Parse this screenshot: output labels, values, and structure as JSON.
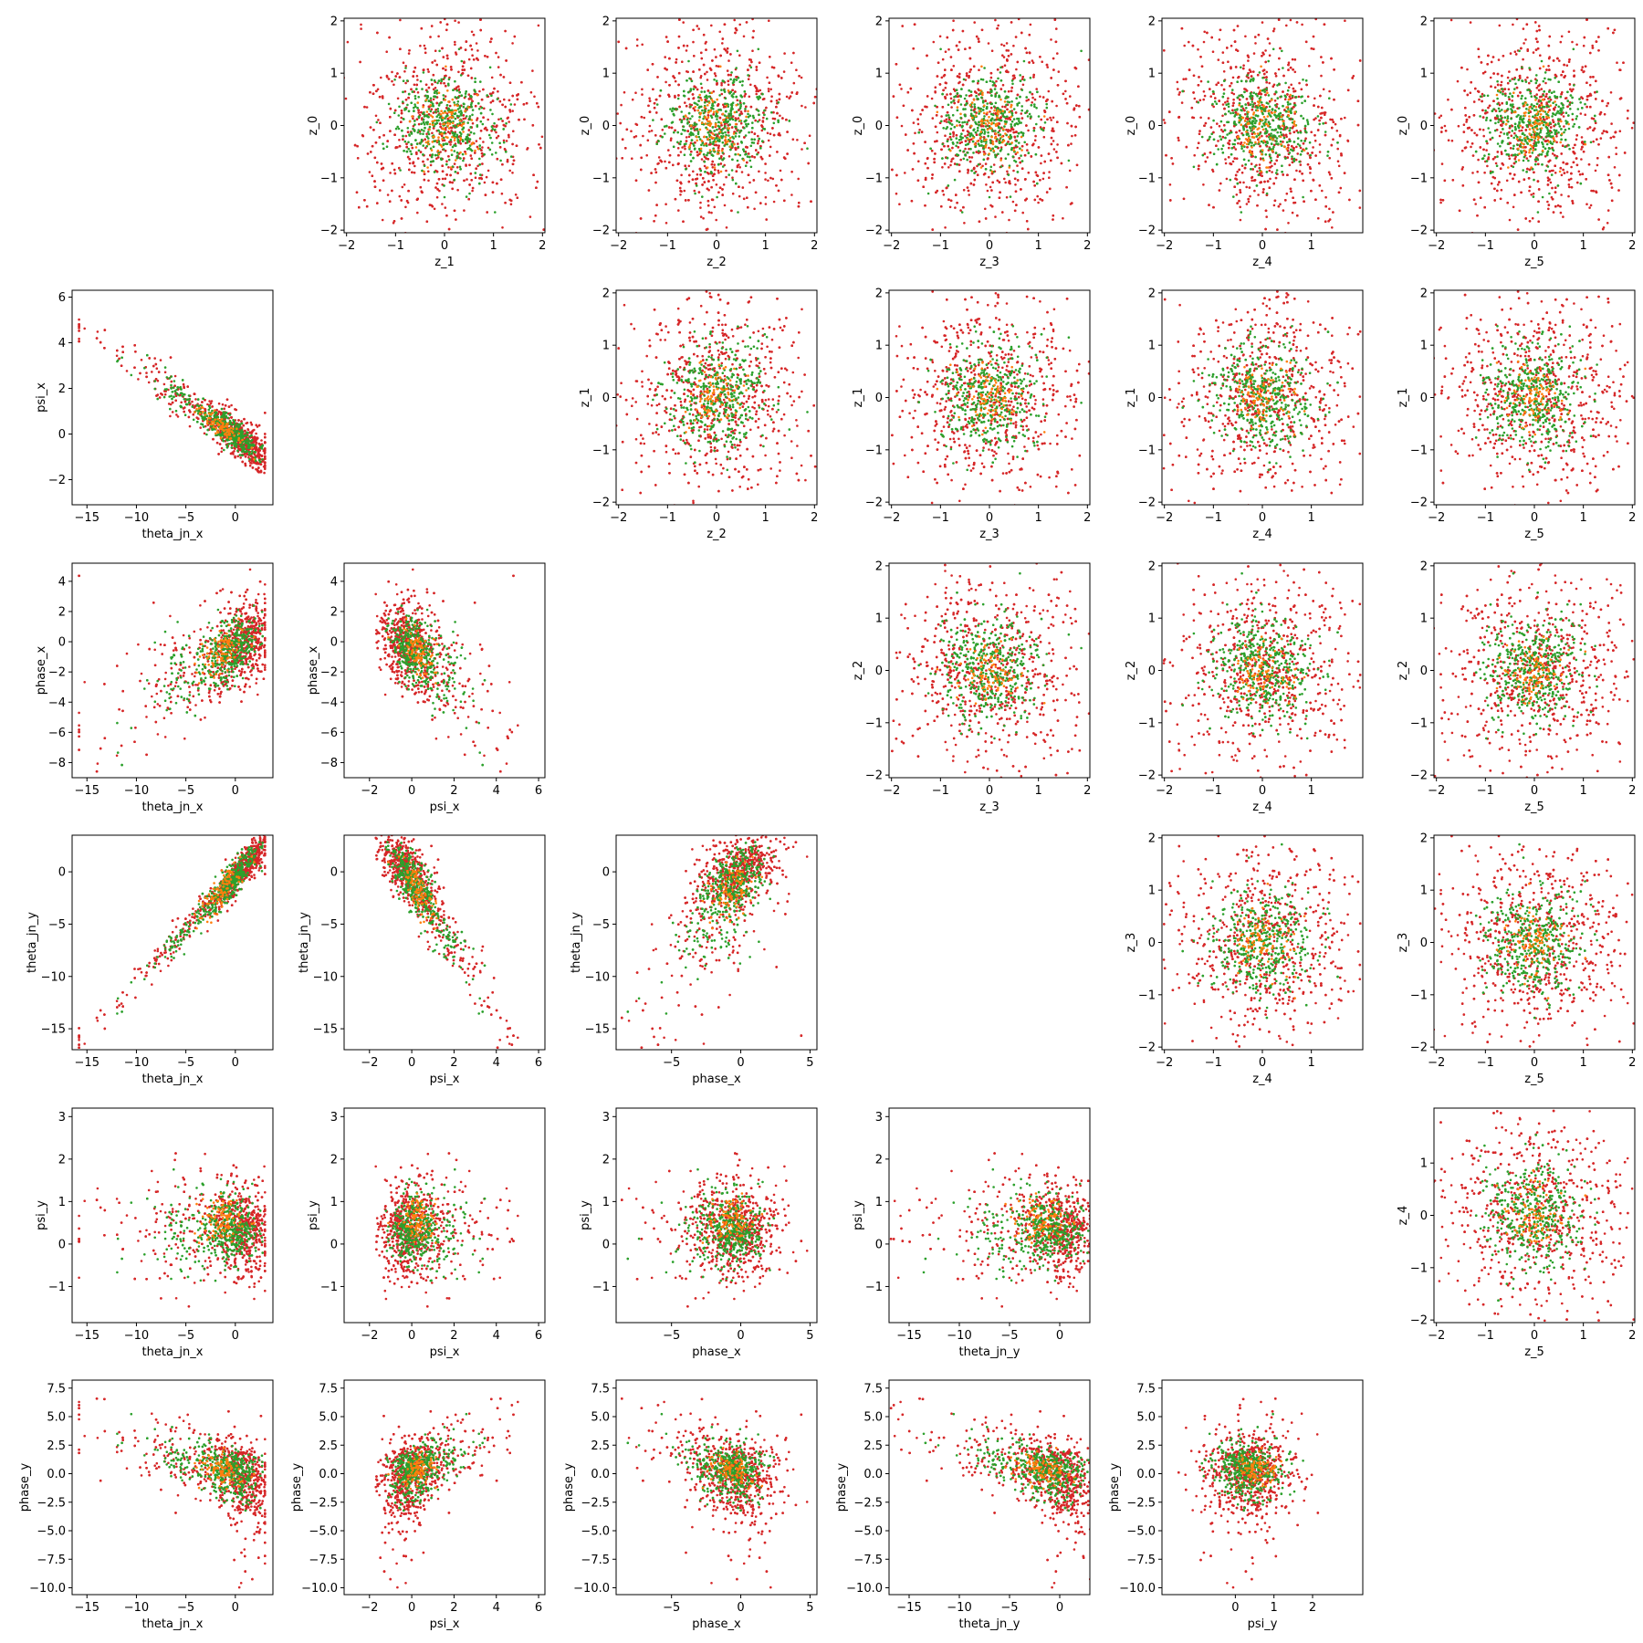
{
  "figure": {
    "background": "#ffffff",
    "colors": {
      "red": "#d62728",
      "green": "#2ca02c",
      "orange": "#ff7f0e"
    },
    "point_counts": {
      "red": 1200,
      "green": 520,
      "orange": 90
    },
    "grid": false,
    "legend": "none"
  },
  "chart_data": [
    {
      "type": "scatter",
      "row": 0,
      "col": 1,
      "xlabel": "z_1",
      "ylabel": "z_0",
      "xlim": [
        -2.05,
        2.05
      ],
      "ylim": [
        -2.05,
        2.05
      ],
      "xticks": [
        -2,
        -1,
        0,
        1,
        2
      ],
      "yticks": [
        -2,
        -1,
        0,
        1,
        2
      ],
      "pattern": "gaussian"
    },
    {
      "type": "scatter",
      "row": 0,
      "col": 2,
      "xlabel": "z_2",
      "ylabel": "z_0",
      "xlim": [
        -2.05,
        2.05
      ],
      "ylim": [
        -2.05,
        2.05
      ],
      "xticks": [
        -2,
        -1,
        0,
        1,
        2
      ],
      "yticks": [
        -2,
        -1,
        0,
        1,
        2
      ],
      "pattern": "gaussian"
    },
    {
      "type": "scatter",
      "row": 0,
      "col": 3,
      "xlabel": "z_3",
      "ylabel": "z_0",
      "xlim": [
        -2.05,
        2.05
      ],
      "ylim": [
        -2.05,
        2.05
      ],
      "xticks": [
        -2,
        -1,
        0,
        1,
        2
      ],
      "yticks": [
        -2,
        -1,
        0,
        1,
        2
      ],
      "pattern": "gaussian"
    },
    {
      "type": "scatter",
      "row": 0,
      "col": 4,
      "xlabel": "z_4",
      "ylabel": "z_0",
      "xlim": [
        -2.05,
        2.05
      ],
      "ylim": [
        -2.05,
        2.05
      ],
      "xticks": [
        -2,
        -1,
        0,
        1
      ],
      "yticks": [
        -2,
        -1,
        0,
        1,
        2
      ],
      "pattern": "gaussian"
    },
    {
      "type": "scatter",
      "row": 0,
      "col": 5,
      "xlabel": "z_5",
      "ylabel": "z_0",
      "xlim": [
        -2.05,
        2.05
      ],
      "ylim": [
        -2.05,
        2.05
      ],
      "xticks": [
        -2,
        -1,
        0,
        1,
        2
      ],
      "yticks": [
        -2,
        -1,
        0,
        1,
        2
      ],
      "pattern": "gaussian"
    },
    {
      "type": "scatter",
      "row": 1,
      "col": 0,
      "xlabel": "theta_jn_x",
      "ylabel": "psi_x",
      "xlim": [
        -16.5,
        3.8
      ],
      "ylim": [
        -3.1,
        6.3
      ],
      "xticks": [
        -15,
        -10,
        -5,
        0
      ],
      "yticks": [
        -2,
        0,
        2,
        4,
        6
      ],
      "pattern": "theta_psi"
    },
    {
      "type": "scatter",
      "row": 1,
      "col": 2,
      "xlabel": "z_2",
      "ylabel": "z_1",
      "xlim": [
        -2.05,
        2.05
      ],
      "ylim": [
        -2.05,
        2.05
      ],
      "xticks": [
        -2,
        -1,
        0,
        1,
        2
      ],
      "yticks": [
        -2,
        -1,
        0,
        1,
        2
      ],
      "pattern": "gaussian"
    },
    {
      "type": "scatter",
      "row": 1,
      "col": 3,
      "xlabel": "z_3",
      "ylabel": "z_1",
      "xlim": [
        -2.05,
        2.05
      ],
      "ylim": [
        -2.05,
        2.05
      ],
      "xticks": [
        -2,
        -1,
        0,
        1,
        2
      ],
      "yticks": [
        -2,
        -1,
        0,
        1,
        2
      ],
      "pattern": "gaussian"
    },
    {
      "type": "scatter",
      "row": 1,
      "col": 4,
      "xlabel": "z_4",
      "ylabel": "z_1",
      "xlim": [
        -2.05,
        2.05
      ],
      "ylim": [
        -2.05,
        2.05
      ],
      "xticks": [
        -2,
        -1,
        0,
        1
      ],
      "yticks": [
        -2,
        -1,
        0,
        1,
        2
      ],
      "pattern": "gaussian"
    },
    {
      "type": "scatter",
      "row": 1,
      "col": 5,
      "xlabel": "z_5",
      "ylabel": "z_1",
      "xlim": [
        -2.05,
        2.05
      ],
      "ylim": [
        -2.05,
        2.05
      ],
      "xticks": [
        -2,
        -1,
        0,
        1,
        2
      ],
      "yticks": [
        -2,
        -1,
        0,
        1,
        2
      ],
      "pattern": "gaussian"
    },
    {
      "type": "scatter",
      "row": 2,
      "col": 0,
      "xlabel": "theta_jn_x",
      "ylabel": "phase_x",
      "xlim": [
        -16.5,
        3.8
      ],
      "ylim": [
        -9.0,
        5.2
      ],
      "xticks": [
        -15,
        -10,
        -5,
        0
      ],
      "yticks": [
        -8,
        -6,
        -4,
        -2,
        0,
        2,
        4
      ],
      "pattern": "theta_phase"
    },
    {
      "type": "scatter",
      "row": 2,
      "col": 1,
      "xlabel": "psi_x",
      "ylabel": "phase_x",
      "xlim": [
        -3.2,
        6.3
      ],
      "ylim": [
        -9.0,
        5.2
      ],
      "xticks": [
        -2,
        0,
        2,
        4,
        6
      ],
      "yticks": [
        -8,
        -6,
        -4,
        -2,
        0,
        2,
        4
      ],
      "pattern": "psi_phase"
    },
    {
      "type": "scatter",
      "row": 2,
      "col": 3,
      "xlabel": "z_3",
      "ylabel": "z_2",
      "xlim": [
        -2.05,
        2.05
      ],
      "ylim": [
        -2.05,
        2.05
      ],
      "xticks": [
        -2,
        -1,
        0,
        1,
        2
      ],
      "yticks": [
        -2,
        -1,
        0,
        1,
        2
      ],
      "pattern": "gaussian"
    },
    {
      "type": "scatter",
      "row": 2,
      "col": 4,
      "xlabel": "z_4",
      "ylabel": "z_2",
      "xlim": [
        -2.05,
        2.05
      ],
      "ylim": [
        -2.05,
        2.05
      ],
      "xticks": [
        -2,
        -1,
        0,
        1
      ],
      "yticks": [
        -2,
        -1,
        0,
        1,
        2
      ],
      "pattern": "gaussian"
    },
    {
      "type": "scatter",
      "row": 2,
      "col": 5,
      "xlabel": "z_5",
      "ylabel": "z_2",
      "xlim": [
        -2.05,
        2.05
      ],
      "ylim": [
        -2.05,
        2.05
      ],
      "xticks": [
        -2,
        -1,
        0,
        1,
        2
      ],
      "yticks": [
        -2,
        -1,
        0,
        1,
        2
      ],
      "pattern": "gaussian"
    },
    {
      "type": "scatter",
      "row": 3,
      "col": 0,
      "xlabel": "theta_jn_x",
      "ylabel": "theta_jn_y",
      "xlim": [
        -16.5,
        3.8
      ],
      "ylim": [
        -17.0,
        3.5
      ],
      "xticks": [
        -15,
        -10,
        -5,
        0
      ],
      "yticks": [
        -15,
        -10,
        -5,
        0
      ],
      "pattern": "theta_theta"
    },
    {
      "type": "scatter",
      "row": 3,
      "col": 1,
      "xlabel": "psi_x",
      "ylabel": "theta_jn_y",
      "xlim": [
        -3.2,
        6.3
      ],
      "ylim": [
        -17.0,
        3.5
      ],
      "xticks": [
        -2,
        0,
        2,
        4,
        6
      ],
      "yticks": [
        -15,
        -10,
        -5,
        0
      ],
      "pattern": "psi_theta"
    },
    {
      "type": "scatter",
      "row": 3,
      "col": 2,
      "xlabel": "phase_x",
      "ylabel": "theta_jn_y",
      "xlim": [
        -9.0,
        5.5
      ],
      "ylim": [
        -17.0,
        3.5
      ],
      "xticks": [
        -5,
        0,
        5
      ],
      "yticks": [
        -15,
        -10,
        -5,
        0
      ],
      "pattern": "phase_theta"
    },
    {
      "type": "scatter",
      "row": 3,
      "col": 4,
      "xlabel": "z_4",
      "ylabel": "z_3",
      "xlim": [
        -2.05,
        2.05
      ],
      "ylim": [
        -2.05,
        2.05
      ],
      "xticks": [
        -2,
        -1,
        0,
        1
      ],
      "yticks": [
        -2,
        -1,
        0,
        1,
        2
      ],
      "pattern": "gaussian"
    },
    {
      "type": "scatter",
      "row": 3,
      "col": 5,
      "xlabel": "z_5",
      "ylabel": "z_3",
      "xlim": [
        -2.05,
        2.05
      ],
      "ylim": [
        -2.05,
        2.05
      ],
      "xticks": [
        -2,
        -1,
        0,
        1,
        2
      ],
      "yticks": [
        -2,
        -1,
        0,
        1,
        2
      ],
      "pattern": "gaussian"
    },
    {
      "type": "scatter",
      "row": 4,
      "col": 0,
      "xlabel": "theta_jn_x",
      "ylabel": "psi_y",
      "xlim": [
        -16.5,
        3.8
      ],
      "ylim": [
        -1.85,
        3.2
      ],
      "xticks": [
        -15,
        -10,
        -5,
        0
      ],
      "yticks": [
        -1,
        0,
        1,
        2,
        3
      ],
      "pattern": "theta_psiy"
    },
    {
      "type": "scatter",
      "row": 4,
      "col": 1,
      "xlabel": "psi_x",
      "ylabel": "psi_y",
      "xlim": [
        -3.2,
        6.3
      ],
      "ylim": [
        -1.85,
        3.2
      ],
      "xticks": [
        -2,
        0,
        2,
        4,
        6
      ],
      "yticks": [
        -1,
        0,
        1,
        2,
        3
      ],
      "pattern": "psi_psiy"
    },
    {
      "type": "scatter",
      "row": 4,
      "col": 2,
      "xlabel": "phase_x",
      "ylabel": "psi_y",
      "xlim": [
        -9.0,
        5.5
      ],
      "ylim": [
        -1.85,
        3.2
      ],
      "xticks": [
        -5,
        0,
        5
      ],
      "yticks": [
        -1,
        0,
        1,
        2,
        3
      ],
      "pattern": "phase_psiy"
    },
    {
      "type": "scatter",
      "row": 4,
      "col": 3,
      "xlabel": "theta_jn_y",
      "ylabel": "psi_y",
      "xlim": [
        -17.0,
        3.0
      ],
      "ylim": [
        -1.85,
        3.2
      ],
      "xticks": [
        -15,
        -10,
        -5,
        0
      ],
      "yticks": [
        -1,
        0,
        1,
        2,
        3
      ],
      "pattern": "thetay_psiy"
    },
    {
      "type": "scatter",
      "row": 4,
      "col": 5,
      "xlabel": "z_5",
      "ylabel": "z_4",
      "xlim": [
        -2.05,
        2.05
      ],
      "ylim": [
        -2.05,
        2.05
      ],
      "xticks": [
        -2,
        -1,
        0,
        1,
        2
      ],
      "yticks": [
        -2,
        -1,
        0,
        1
      ],
      "pattern": "gaussian"
    },
    {
      "type": "scatter",
      "row": 5,
      "col": 0,
      "xlabel": "theta_jn_x",
      "ylabel": "phase_y",
      "xlim": [
        -16.5,
        3.8
      ],
      "ylim": [
        -10.6,
        8.2
      ],
      "xticks": [
        -15,
        -10,
        -5,
        0
      ],
      "yticks": [
        -10,
        -7.5,
        -5,
        -2.5,
        0,
        2.5,
        5,
        7.5
      ],
      "ytick_labels": [
        "−10.0",
        "−7.5",
        "−5.0",
        "−2.5",
        "0.0",
        "2.5",
        "5.0",
        "7.5"
      ],
      "pattern": "theta_phasey"
    },
    {
      "type": "scatter",
      "row": 5,
      "col": 1,
      "xlabel": "psi_x",
      "ylabel": "phase_y",
      "xlim": [
        -3.2,
        6.3
      ],
      "ylim": [
        -10.6,
        8.2
      ],
      "xticks": [
        -2,
        0,
        2,
        4,
        6
      ],
      "yticks": [
        -10,
        -7.5,
        -5,
        -2.5,
        0,
        2.5,
        5,
        7.5
      ],
      "ytick_labels": [
        "−10.0",
        "−7.5",
        "−5.0",
        "−2.5",
        "0.0",
        "2.5",
        "5.0",
        "7.5"
      ],
      "pattern": "psi_phasey"
    },
    {
      "type": "scatter",
      "row": 5,
      "col": 2,
      "xlabel": "phase_x",
      "ylabel": "phase_y",
      "xlim": [
        -9.0,
        5.5
      ],
      "ylim": [
        -10.6,
        8.2
      ],
      "xticks": [
        -5,
        0,
        5
      ],
      "yticks": [
        -10,
        -7.5,
        -5,
        -2.5,
        0,
        2.5,
        5,
        7.5
      ],
      "ytick_labels": [
        "−10.0",
        "−7.5",
        "−5.0",
        "−2.5",
        "0.0",
        "2.5",
        "5.0",
        "7.5"
      ],
      "pattern": "phase_phasey"
    },
    {
      "type": "scatter",
      "row": 5,
      "col": 3,
      "xlabel": "theta_jn_y",
      "ylabel": "phase_y",
      "xlim": [
        -17.0,
        3.0
      ],
      "ylim": [
        -10.6,
        8.2
      ],
      "xticks": [
        -15,
        -10,
        -5,
        0
      ],
      "yticks": [
        -10,
        -7.5,
        -5,
        -2.5,
        0,
        2.5,
        5,
        7.5
      ],
      "ytick_labels": [
        "−10.0",
        "−7.5",
        "−5.0",
        "−2.5",
        "0.0",
        "2.5",
        "5.0",
        "7.5"
      ],
      "pattern": "thetay_phasey"
    },
    {
      "type": "scatter",
      "row": 5,
      "col": 4,
      "xlabel": "psi_y",
      "ylabel": "phase_y",
      "xlim": [
        -1.9,
        3.3
      ],
      "ylim": [
        -10.6,
        8.2
      ],
      "xticks": [
        0,
        1,
        2
      ],
      "yticks": [
        -10,
        -7.5,
        -5,
        -2.5,
        0,
        2.5,
        5,
        7.5
      ],
      "ytick_labels": [
        "−10.0",
        "−7.5",
        "−5.0",
        "−2.5",
        "0.0",
        "2.5",
        "5.0",
        "7.5"
      ],
      "pattern": "psiy_phasey"
    }
  ]
}
